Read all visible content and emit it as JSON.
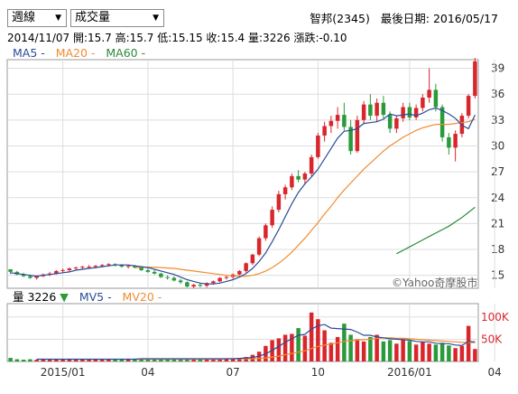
{
  "controls": {
    "period": "週線",
    "indicator": "成交量"
  },
  "header": {
    "stock": "智邦(2345)",
    "last_date_label": "最後日期:",
    "last_date": "2016/05/17",
    "bar_date": "2014/11/07",
    "open": "開:15.7",
    "high": "高:15.7",
    "low": "低:15.15",
    "close": "收:15.4",
    "vol": "量:3226",
    "change": "漲跌:-0.10"
  },
  "legend": {
    "ma5": "MA5 -",
    "ma20": "MA20 -",
    "ma60": "MA60 -"
  },
  "watermark": "©Yahoo奇摩股市",
  "volume_legend": {
    "label": "量 3226",
    "arrow": "▼",
    "mv5": "MV5 -",
    "mv20": "MV20 -"
  },
  "colors": {
    "up": "#d9262c",
    "down": "#2a9a3a",
    "ma5": "#2b4b9a",
    "ma20": "#f08c32",
    "ma60": "#2a8a3a"
  },
  "chart_data": {
    "type": "candlestick",
    "yticks": [
      15,
      18,
      21,
      24,
      27,
      30,
      33,
      36,
      39
    ],
    "vticks": [
      "50K",
      "100K"
    ],
    "xticks": [
      {
        "i": 8,
        "label": "2015/01"
      },
      {
        "i": 21,
        "label": "04"
      },
      {
        "i": 34,
        "label": "07"
      },
      {
        "i": 47,
        "label": "10"
      },
      {
        "i": 61,
        "label": "2016/01"
      },
      {
        "i": 74,
        "label": "04"
      }
    ],
    "ylim": [
      13.5,
      40
    ],
    "vmax": 130,
    "candles": [
      [
        15.7,
        15.7,
        15.15,
        15.4
      ],
      [
        15.4,
        15.5,
        15.0,
        15.1
      ],
      [
        15.1,
        15.3,
        14.8,
        14.9
      ],
      [
        14.9,
        15.1,
        14.6,
        14.7
      ],
      [
        14.7,
        15.0,
        14.5,
        14.9
      ],
      [
        14.9,
        15.2,
        14.8,
        15.1
      ],
      [
        15.1,
        15.4,
        14.9,
        15.2
      ],
      [
        15.2,
        15.6,
        15.1,
        15.5
      ],
      [
        15.5,
        15.8,
        15.3,
        15.6
      ],
      [
        15.6,
        15.9,
        15.4,
        15.8
      ],
      [
        15.8,
        16.0,
        15.6,
        15.9
      ],
      [
        15.9,
        16.1,
        15.7,
        16.0
      ],
      [
        16.0,
        16.2,
        15.8,
        16.0
      ],
      [
        16.0,
        16.2,
        15.8,
        16.1
      ],
      [
        16.1,
        16.3,
        15.9,
        16.2
      ],
      [
        16.2,
        16.4,
        16.0,
        16.3
      ],
      [
        16.3,
        16.4,
        16.0,
        16.2
      ],
      [
        16.2,
        16.3,
        15.9,
        16.0
      ],
      [
        16.0,
        16.2,
        15.8,
        16.1
      ],
      [
        16.1,
        16.2,
        15.8,
        15.9
      ],
      [
        15.9,
        16.0,
        15.5,
        15.6
      ],
      [
        15.6,
        15.8,
        15.3,
        15.4
      ],
      [
        15.4,
        15.6,
        15.1,
        15.2
      ],
      [
        15.2,
        15.3,
        14.7,
        14.8
      ],
      [
        14.8,
        15.0,
        14.5,
        14.7
      ],
      [
        14.7,
        14.9,
        14.3,
        14.4
      ],
      [
        14.4,
        14.6,
        14.0,
        14.2
      ],
      [
        14.2,
        14.3,
        13.6,
        13.7
      ],
      [
        13.7,
        14.0,
        13.5,
        13.9
      ],
      [
        13.9,
        14.1,
        13.6,
        13.8
      ],
      [
        13.8,
        14.2,
        13.6,
        14.1
      ],
      [
        14.1,
        14.4,
        13.9,
        14.3
      ],
      [
        14.3,
        14.8,
        14.2,
        14.7
      ],
      [
        14.7,
        15.0,
        14.5,
        14.8
      ],
      [
        14.8,
        15.2,
        14.6,
        15.1
      ],
      [
        15.1,
        15.6,
        15.0,
        15.5
      ],
      [
        15.5,
        16.5,
        15.3,
        16.4
      ],
      [
        16.4,
        17.5,
        16.2,
        17.4
      ],
      [
        17.4,
        19.5,
        17.2,
        19.3
      ],
      [
        19.3,
        21.0,
        19.0,
        20.8
      ],
      [
        20.8,
        23.0,
        20.5,
        22.6
      ],
      [
        22.6,
        24.8,
        22.3,
        24.4
      ],
      [
        24.4,
        25.5,
        23.8,
        25.2
      ],
      [
        25.2,
        26.8,
        24.9,
        26.5
      ],
      [
        26.5,
        27.2,
        25.8,
        26.1
      ],
      [
        26.1,
        27.0,
        25.5,
        26.8
      ],
      [
        26.8,
        29.0,
        26.5,
        28.7
      ],
      [
        28.7,
        31.5,
        28.5,
        31.2
      ],
      [
        31.2,
        32.8,
        30.5,
        32.3
      ],
      [
        32.3,
        33.5,
        31.5,
        32.9
      ],
      [
        32.9,
        34.5,
        32.0,
        33.6
      ],
      [
        33.6,
        35.0,
        31.8,
        32.2
      ],
      [
        32.2,
        33.0,
        29.0,
        29.4
      ],
      [
        29.4,
        33.5,
        29.2,
        33.0
      ],
      [
        33.0,
        35.2,
        32.5,
        34.8
      ],
      [
        34.8,
        36.0,
        33.0,
        33.5
      ],
      [
        33.5,
        35.5,
        32.8,
        35.0
      ],
      [
        35.0,
        35.8,
        33.2,
        33.6
      ],
      [
        33.6,
        34.0,
        31.5,
        32.0
      ],
      [
        32.0,
        33.5,
        31.5,
        33.2
      ],
      [
        33.2,
        35.0,
        32.8,
        34.5
      ],
      [
        34.5,
        35.0,
        33.0,
        33.3
      ],
      [
        33.3,
        34.8,
        33.0,
        34.4
      ],
      [
        34.4,
        36.0,
        34.0,
        35.6
      ],
      [
        35.6,
        39.0,
        35.0,
        36.5
      ],
      [
        36.5,
        37.2,
        34.0,
        34.5
      ],
      [
        34.5,
        34.8,
        30.5,
        31.0
      ],
      [
        31.0,
        31.5,
        29.0,
        29.8
      ],
      [
        29.8,
        31.8,
        28.2,
        31.4
      ],
      [
        31.4,
        33.8,
        31.0,
        33.5
      ],
      [
        33.5,
        36.0,
        33.2,
        35.8
      ],
      [
        35.8,
        40.2,
        35.5,
        39.8
      ]
    ],
    "ma5": [
      15.3,
      15.2,
      15.1,
      15.0,
      14.9,
      15.0,
      15.1,
      15.2,
      15.3,
      15.4,
      15.6,
      15.7,
      15.8,
      15.9,
      16.0,
      16.1,
      16.2,
      16.2,
      16.2,
      16.1,
      16.0,
      15.9,
      15.7,
      15.5,
      15.3,
      15.1,
      14.8,
      14.5,
      14.3,
      14.1,
      14.0,
      14.0,
      14.1,
      14.3,
      14.5,
      14.8,
      15.2,
      15.8,
      16.6,
      17.6,
      18.9,
      20.3,
      21.8,
      23.3,
      24.6,
      25.6,
      26.4,
      27.3,
      28.5,
      29.7,
      30.9,
      31.7,
      31.8,
      32.0,
      32.6,
      32.7,
      32.8,
      33.1,
      33.7,
      33.5,
      33.6,
      33.7,
      33.5,
      33.8,
      34.2,
      34.4,
      34.1,
      33.7,
      33.2,
      32.4,
      32.0,
      33.6
    ],
    "ma20": [
      null,
      null,
      null,
      null,
      null,
      null,
      null,
      null,
      null,
      null,
      null,
      null,
      null,
      null,
      null,
      null,
      null,
      null,
      null,
      15.9,
      15.95,
      15.95,
      15.95,
      15.9,
      15.85,
      15.8,
      15.7,
      15.6,
      15.5,
      15.4,
      15.3,
      15.2,
      15.1,
      15.0,
      14.95,
      14.9,
      14.9,
      15.0,
      15.2,
      15.5,
      15.9,
      16.4,
      17.0,
      17.7,
      18.5,
      19.3,
      20.2,
      21.1,
      22.1,
      23.0,
      24.0,
      24.9,
      25.7,
      26.5,
      27.3,
      28.0,
      28.7,
      29.4,
      30.0,
      30.5,
      31.0,
      31.4,
      31.8,
      32.1,
      32.3,
      32.5,
      32.5,
      32.5,
      32.6,
      32.7,
      32.8,
      33.1
    ],
    "ma60": [
      null,
      null,
      null,
      null,
      null,
      null,
      null,
      null,
      null,
      null,
      null,
      null,
      null,
      null,
      null,
      null,
      null,
      null,
      null,
      null,
      null,
      null,
      null,
      null,
      null,
      null,
      null,
      null,
      null,
      null,
      null,
      null,
      null,
      null,
      null,
      null,
      null,
      null,
      null,
      null,
      null,
      null,
      null,
      null,
      null,
      null,
      null,
      null,
      null,
      null,
      null,
      null,
      null,
      null,
      null,
      null,
      null,
      null,
      null,
      17.5,
      17.9,
      18.3,
      18.7,
      19.1,
      19.5,
      19.9,
      20.3,
      20.7,
      21.2,
      21.7,
      22.3,
      22.9
    ],
    "volume": [
      8,
      5,
      4,
      5,
      4,
      5,
      4,
      5,
      6,
      5,
      4,
      5,
      4,
      5,
      4,
      5,
      6,
      5,
      6,
      5,
      7,
      6,
      5,
      5,
      6,
      5,
      6,
      5,
      6,
      7,
      5,
      6,
      7,
      6,
      7,
      8,
      10,
      15,
      22,
      35,
      48,
      52,
      60,
      62,
      75,
      58,
      110,
      95,
      70,
      42,
      55,
      85,
      60,
      50,
      45,
      55,
      60,
      45,
      48,
      40,
      50,
      46,
      38,
      44,
      40,
      38,
      42,
      36,
      30,
      35,
      80,
      28
    ],
    "mv5": [
      null,
      null,
      null,
      null,
      5,
      5,
      5,
      5,
      5,
      5,
      5,
      5,
      5,
      5,
      5,
      5,
      5,
      5,
      5,
      5,
      6,
      6,
      6,
      6,
      6,
      6,
      6,
      6,
      6,
      6,
      6,
      6,
      6,
      6,
      6,
      7,
      8,
      9,
      12,
      17,
      25,
      34,
      43,
      51,
      59,
      61,
      73,
      80,
      83,
      75,
      74,
      73,
      72,
      66,
      59,
      59,
      55,
      53,
      51,
      50,
      49,
      48,
      45,
      44,
      44,
      41,
      40,
      40,
      37,
      36,
      45,
      44
    ],
    "mv20": [
      null,
      null,
      null,
      null,
      null,
      null,
      null,
      null,
      null,
      null,
      null,
      null,
      null,
      null,
      null,
      null,
      null,
      null,
      null,
      5,
      5,
      5,
      5,
      5,
      5,
      5,
      5,
      5,
      5,
      5,
      5,
      5,
      5,
      6,
      6,
      6,
      6,
      6,
      7,
      8,
      10,
      12,
      15,
      18,
      21,
      24,
      29,
      34,
      37,
      39,
      42,
      45,
      47,
      48,
      49,
      50,
      52,
      53,
      53,
      52,
      52,
      51,
      50,
      49,
      48,
      47,
      46,
      45,
      44,
      43,
      43,
      42
    ]
  }
}
